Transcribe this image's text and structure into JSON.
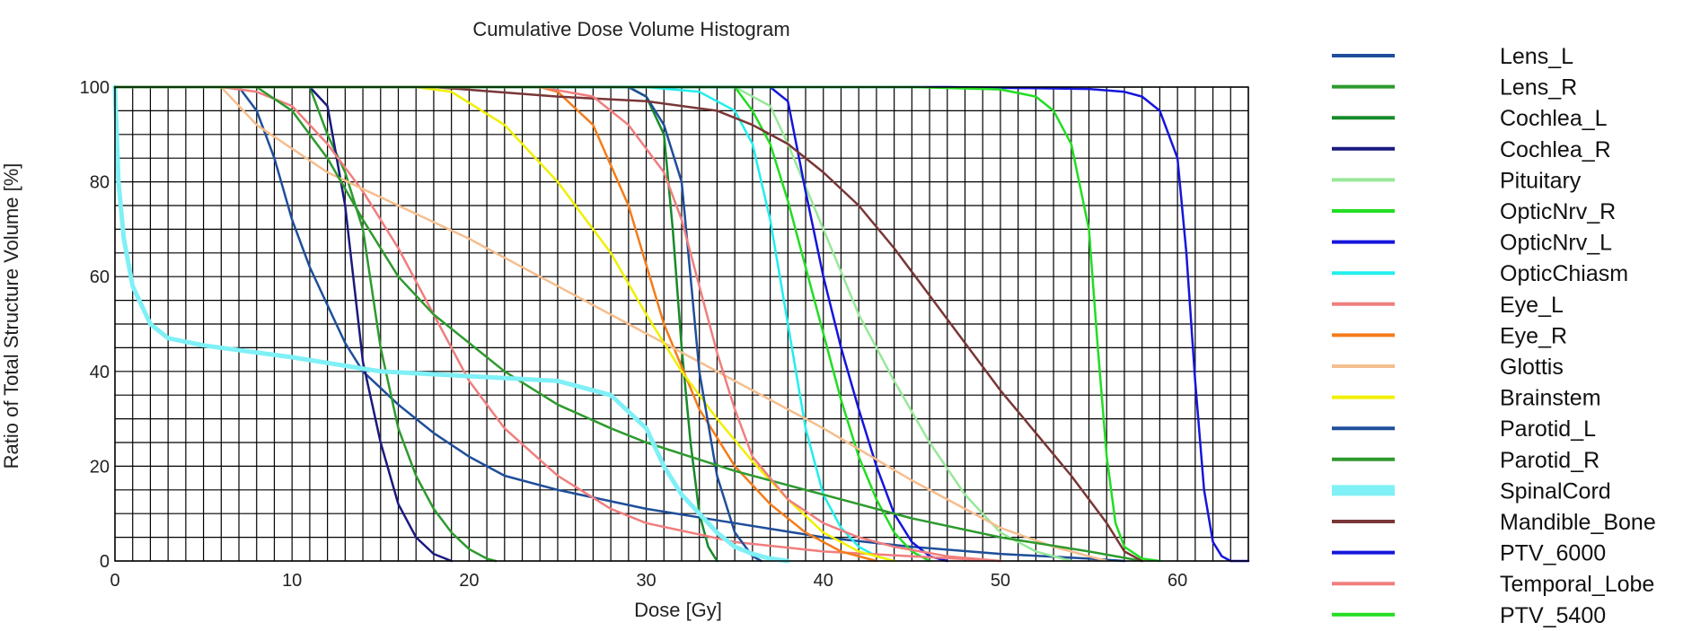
{
  "chart_data": {
    "type": "line",
    "title": "Cumulative Dose Volume Histogram",
    "xlabel": "Dose [Gy]",
    "ylabel": "Ratio of Total Structure Volume [%]",
    "xlim": [
      0,
      64
    ],
    "ylim": [
      0,
      100
    ],
    "x_ticks": [
      0,
      10,
      20,
      30,
      40,
      50,
      60
    ],
    "y_ticks": [
      0,
      20,
      40,
      60,
      80,
      100
    ],
    "grid": true,
    "grid_minor_x": 1,
    "grid_minor_y": 5,
    "legend_position": "right",
    "series": [
      {
        "name": "Lens_L",
        "color": "#1f4e9a",
        "width": 2.5,
        "points": [
          [
            0,
            100
          ],
          [
            7,
            100
          ],
          [
            8,
            95
          ],
          [
            9,
            85
          ],
          [
            10,
            72
          ],
          [
            11,
            62
          ],
          [
            12,
            54
          ],
          [
            13,
            46
          ],
          [
            14,
            40
          ],
          [
            16,
            33
          ],
          [
            18,
            27
          ],
          [
            20,
            22
          ],
          [
            22,
            18
          ],
          [
            25,
            15
          ],
          [
            30,
            11
          ],
          [
            35,
            8
          ],
          [
            40,
            5
          ],
          [
            45,
            3
          ],
          [
            50,
            1.5
          ],
          [
            55,
            0.5
          ],
          [
            57,
            0
          ]
        ]
      },
      {
        "name": "Lens_R",
        "color": "#2e9a2e",
        "width": 2.5,
        "points": [
          [
            0,
            100
          ],
          [
            11,
            100
          ],
          [
            12,
            90
          ],
          [
            13,
            82
          ],
          [
            14,
            70
          ],
          [
            15,
            45
          ],
          [
            16,
            28
          ],
          [
            17,
            18
          ],
          [
            18,
            11
          ],
          [
            19,
            6
          ],
          [
            20,
            2.5
          ],
          [
            21,
            0.5
          ],
          [
            21.5,
            0
          ]
        ]
      },
      {
        "name": "Cochlea_L",
        "color": "#178a2a",
        "width": 2.5,
        "points": [
          [
            0,
            100
          ],
          [
            29,
            100
          ],
          [
            30,
            98
          ],
          [
            31,
            90
          ],
          [
            31.5,
            70
          ],
          [
            32,
            45
          ],
          [
            32.5,
            25
          ],
          [
            33,
            10
          ],
          [
            33.5,
            3
          ],
          [
            34,
            0
          ]
        ]
      },
      {
        "name": "Cochlea_R",
        "color": "#1a1a7e",
        "width": 2.5,
        "points": [
          [
            0,
            100
          ],
          [
            7,
            100
          ],
          [
            11,
            100
          ],
          [
            12,
            96
          ],
          [
            13,
            75
          ],
          [
            14,
            42
          ],
          [
            15,
            25
          ],
          [
            16,
            12
          ],
          [
            17,
            5
          ],
          [
            18,
            1.5
          ],
          [
            19,
            0
          ]
        ]
      },
      {
        "name": "Pituitary",
        "color": "#98e898",
        "width": 2.5,
        "points": [
          [
            0,
            100
          ],
          [
            35,
            100
          ],
          [
            37,
            96
          ],
          [
            38,
            88
          ],
          [
            40,
            70
          ],
          [
            42,
            52
          ],
          [
            44,
            38
          ],
          [
            46,
            25
          ],
          [
            48,
            14
          ],
          [
            50,
            6
          ],
          [
            52,
            2
          ],
          [
            54,
            0
          ]
        ]
      },
      {
        "name": "OpticNrv_R",
        "color": "#22dd22",
        "width": 2.5,
        "points": [
          [
            0,
            100
          ],
          [
            35,
            100
          ],
          [
            36,
            95
          ],
          [
            37,
            88
          ],
          [
            38,
            76
          ],
          [
            39,
            62
          ],
          [
            40,
            48
          ],
          [
            41,
            34
          ],
          [
            42,
            22
          ],
          [
            43,
            13
          ],
          [
            44,
            6
          ],
          [
            45,
            2
          ],
          [
            46,
            0
          ]
        ]
      },
      {
        "name": "OpticNrv_L",
        "color": "#1515dd",
        "width": 2.5,
        "points": [
          [
            0,
            100
          ],
          [
            37,
            100
          ],
          [
            38,
            97
          ],
          [
            39,
            78
          ],
          [
            40,
            60
          ],
          [
            41,
            45
          ],
          [
            42,
            32
          ],
          [
            43,
            20
          ],
          [
            44,
            10
          ],
          [
            45,
            4
          ],
          [
            46,
            1
          ],
          [
            47,
            0
          ]
        ]
      },
      {
        "name": "OpticChiasm",
        "color": "#22eeee",
        "width": 2.5,
        "points": [
          [
            0,
            100
          ],
          [
            30,
            100
          ],
          [
            33,
            99
          ],
          [
            35,
            95
          ],
          [
            36,
            88
          ],
          [
            37,
            72
          ],
          [
            38,
            50
          ],
          [
            39,
            28
          ],
          [
            40,
            14
          ],
          [
            41,
            7
          ],
          [
            42,
            3
          ],
          [
            43,
            1
          ],
          [
            44,
            0
          ]
        ]
      },
      {
        "name": "Eye_L",
        "color": "#f07e7e",
        "width": 2.5,
        "points": [
          [
            0,
            100
          ],
          [
            6,
            100
          ],
          [
            8,
            99
          ],
          [
            10,
            96
          ],
          [
            12,
            88
          ],
          [
            14,
            78
          ],
          [
            16,
            66
          ],
          [
            18,
            52
          ],
          [
            20,
            38
          ],
          [
            22,
            28
          ],
          [
            25,
            18
          ],
          [
            28,
            11
          ],
          [
            30,
            8
          ],
          [
            35,
            4
          ],
          [
            40,
            2
          ],
          [
            45,
            1
          ],
          [
            50,
            0
          ]
        ]
      },
      {
        "name": "Eye_R",
        "color": "#f47c1a",
        "width": 2.5,
        "points": [
          [
            0,
            100
          ],
          [
            24,
            100
          ],
          [
            25,
            99
          ],
          [
            27,
            92
          ],
          [
            29,
            75
          ],
          [
            31,
            50
          ],
          [
            33,
            32
          ],
          [
            35,
            20
          ],
          [
            37,
            12
          ],
          [
            39,
            6
          ],
          [
            41,
            2
          ],
          [
            43,
            0
          ]
        ]
      },
      {
        "name": "Glottis",
        "color": "#f5be8e",
        "width": 2.5,
        "points": [
          [
            0,
            100
          ],
          [
            6,
            100
          ],
          [
            8,
            92
          ],
          [
            12,
            82
          ],
          [
            16,
            75
          ],
          [
            20,
            68
          ],
          [
            25,
            58
          ],
          [
            30,
            48
          ],
          [
            35,
            38
          ],
          [
            40,
            28
          ],
          [
            45,
            17
          ],
          [
            50,
            7
          ],
          [
            53,
            3
          ],
          [
            56,
            0
          ]
        ]
      },
      {
        "name": "Brainstem",
        "color": "#f0f000",
        "width": 2.5,
        "points": [
          [
            0,
            100
          ],
          [
            17,
            100
          ],
          [
            19,
            99
          ],
          [
            22,
            92
          ],
          [
            25,
            80
          ],
          [
            28,
            65
          ],
          [
            30,
            52
          ],
          [
            32,
            40
          ],
          [
            34,
            30
          ],
          [
            36,
            21
          ],
          [
            38,
            13
          ],
          [
            40,
            6
          ],
          [
            42,
            2
          ],
          [
            44,
            0
          ]
        ]
      },
      {
        "name": "Parotid_L",
        "color": "#1f4e9a",
        "width": 2.5,
        "points": [
          [
            0,
            100
          ],
          [
            29,
            100
          ],
          [
            30,
            98
          ],
          [
            31,
            92
          ],
          [
            32,
            80
          ],
          [
            32.5,
            60
          ],
          [
            33,
            40
          ],
          [
            34,
            18
          ],
          [
            35,
            6
          ],
          [
            36,
            1
          ],
          [
            36.5,
            0
          ]
        ]
      },
      {
        "name": "Parotid_R",
        "color": "#2e9a2e",
        "width": 2.5,
        "points": [
          [
            0,
            100
          ],
          [
            8,
            100
          ],
          [
            10,
            95
          ],
          [
            12,
            85
          ],
          [
            14,
            72
          ],
          [
            16,
            60
          ],
          [
            18,
            52
          ],
          [
            20,
            46
          ],
          [
            22,
            40
          ],
          [
            25,
            33
          ],
          [
            28,
            28
          ],
          [
            30,
            25
          ],
          [
            35,
            19
          ],
          [
            40,
            14
          ],
          [
            45,
            9
          ],
          [
            50,
            5
          ],
          [
            55,
            2
          ],
          [
            58,
            0
          ]
        ]
      },
      {
        "name": "SpinalCord",
        "color": "#7ff0f6",
        "width": 5,
        "points": [
          [
            0,
            100
          ],
          [
            0.2,
            80
          ],
          [
            0.5,
            68
          ],
          [
            1,
            58
          ],
          [
            2,
            50
          ],
          [
            3,
            47
          ],
          [
            5,
            45.5
          ],
          [
            10,
            43
          ],
          [
            15,
            40
          ],
          [
            20,
            39
          ],
          [
            25,
            38
          ],
          [
            28,
            35
          ],
          [
            30,
            28
          ],
          [
            31,
            20
          ],
          [
            32,
            14
          ],
          [
            33,
            10
          ],
          [
            34,
            6
          ],
          [
            35,
            3
          ],
          [
            36,
            1.5
          ],
          [
            37,
            0.5
          ],
          [
            38,
            0
          ]
        ]
      },
      {
        "name": "Mandible_Bone",
        "color": "#7a3636",
        "width": 2.5,
        "points": [
          [
            0,
            100
          ],
          [
            18,
            100
          ],
          [
            25,
            98
          ],
          [
            30,
            97
          ],
          [
            34,
            95
          ],
          [
            36,
            92
          ],
          [
            38,
            88
          ],
          [
            40,
            82
          ],
          [
            42,
            75
          ],
          [
            44,
            66
          ],
          [
            46,
            56
          ],
          [
            48,
            46
          ],
          [
            50,
            36
          ],
          [
            52,
            27
          ],
          [
            54,
            18
          ],
          [
            56,
            8
          ],
          [
            57,
            2
          ],
          [
            58,
            0
          ]
        ]
      },
      {
        "name": "PTV_6000",
        "color": "#1515dd",
        "width": 2.5,
        "points": [
          [
            0,
            100
          ],
          [
            47,
            100
          ],
          [
            55,
            99.6
          ],
          [
            57,
            99
          ],
          [
            58,
            98
          ],
          [
            59,
            95
          ],
          [
            60,
            85
          ],
          [
            60.5,
            65
          ],
          [
            61,
            38
          ],
          [
            61.5,
            15
          ],
          [
            62,
            4
          ],
          [
            62.5,
            1
          ],
          [
            63,
            0
          ],
          [
            64,
            0
          ]
        ]
      },
      {
        "name": "Temporal_Lobe",
        "color": "#f07e7e",
        "width": 2.5,
        "points": [
          [
            0,
            100
          ],
          [
            24,
            100
          ],
          [
            27,
            98
          ],
          [
            29,
            92
          ],
          [
            31,
            82
          ],
          [
            32,
            72
          ],
          [
            33,
            58
          ],
          [
            34,
            44
          ],
          [
            35,
            32
          ],
          [
            36,
            22
          ],
          [
            38,
            13
          ],
          [
            40,
            8
          ],
          [
            42,
            5
          ],
          [
            44,
            3
          ],
          [
            47,
            1
          ],
          [
            50,
            0
          ]
        ]
      },
      {
        "name": "PTV_5400",
        "color": "#22dd22",
        "width": 2.5,
        "points": [
          [
            0,
            100
          ],
          [
            45,
            100
          ],
          [
            50,
            99.5
          ],
          [
            52,
            98
          ],
          [
            53,
            95
          ],
          [
            54,
            88
          ],
          [
            55,
            70
          ],
          [
            55.5,
            45
          ],
          [
            56,
            22
          ],
          [
            56.5,
            8
          ],
          [
            57,
            3
          ],
          [
            58,
            0.5
          ],
          [
            59,
            0
          ]
        ]
      }
    ]
  }
}
